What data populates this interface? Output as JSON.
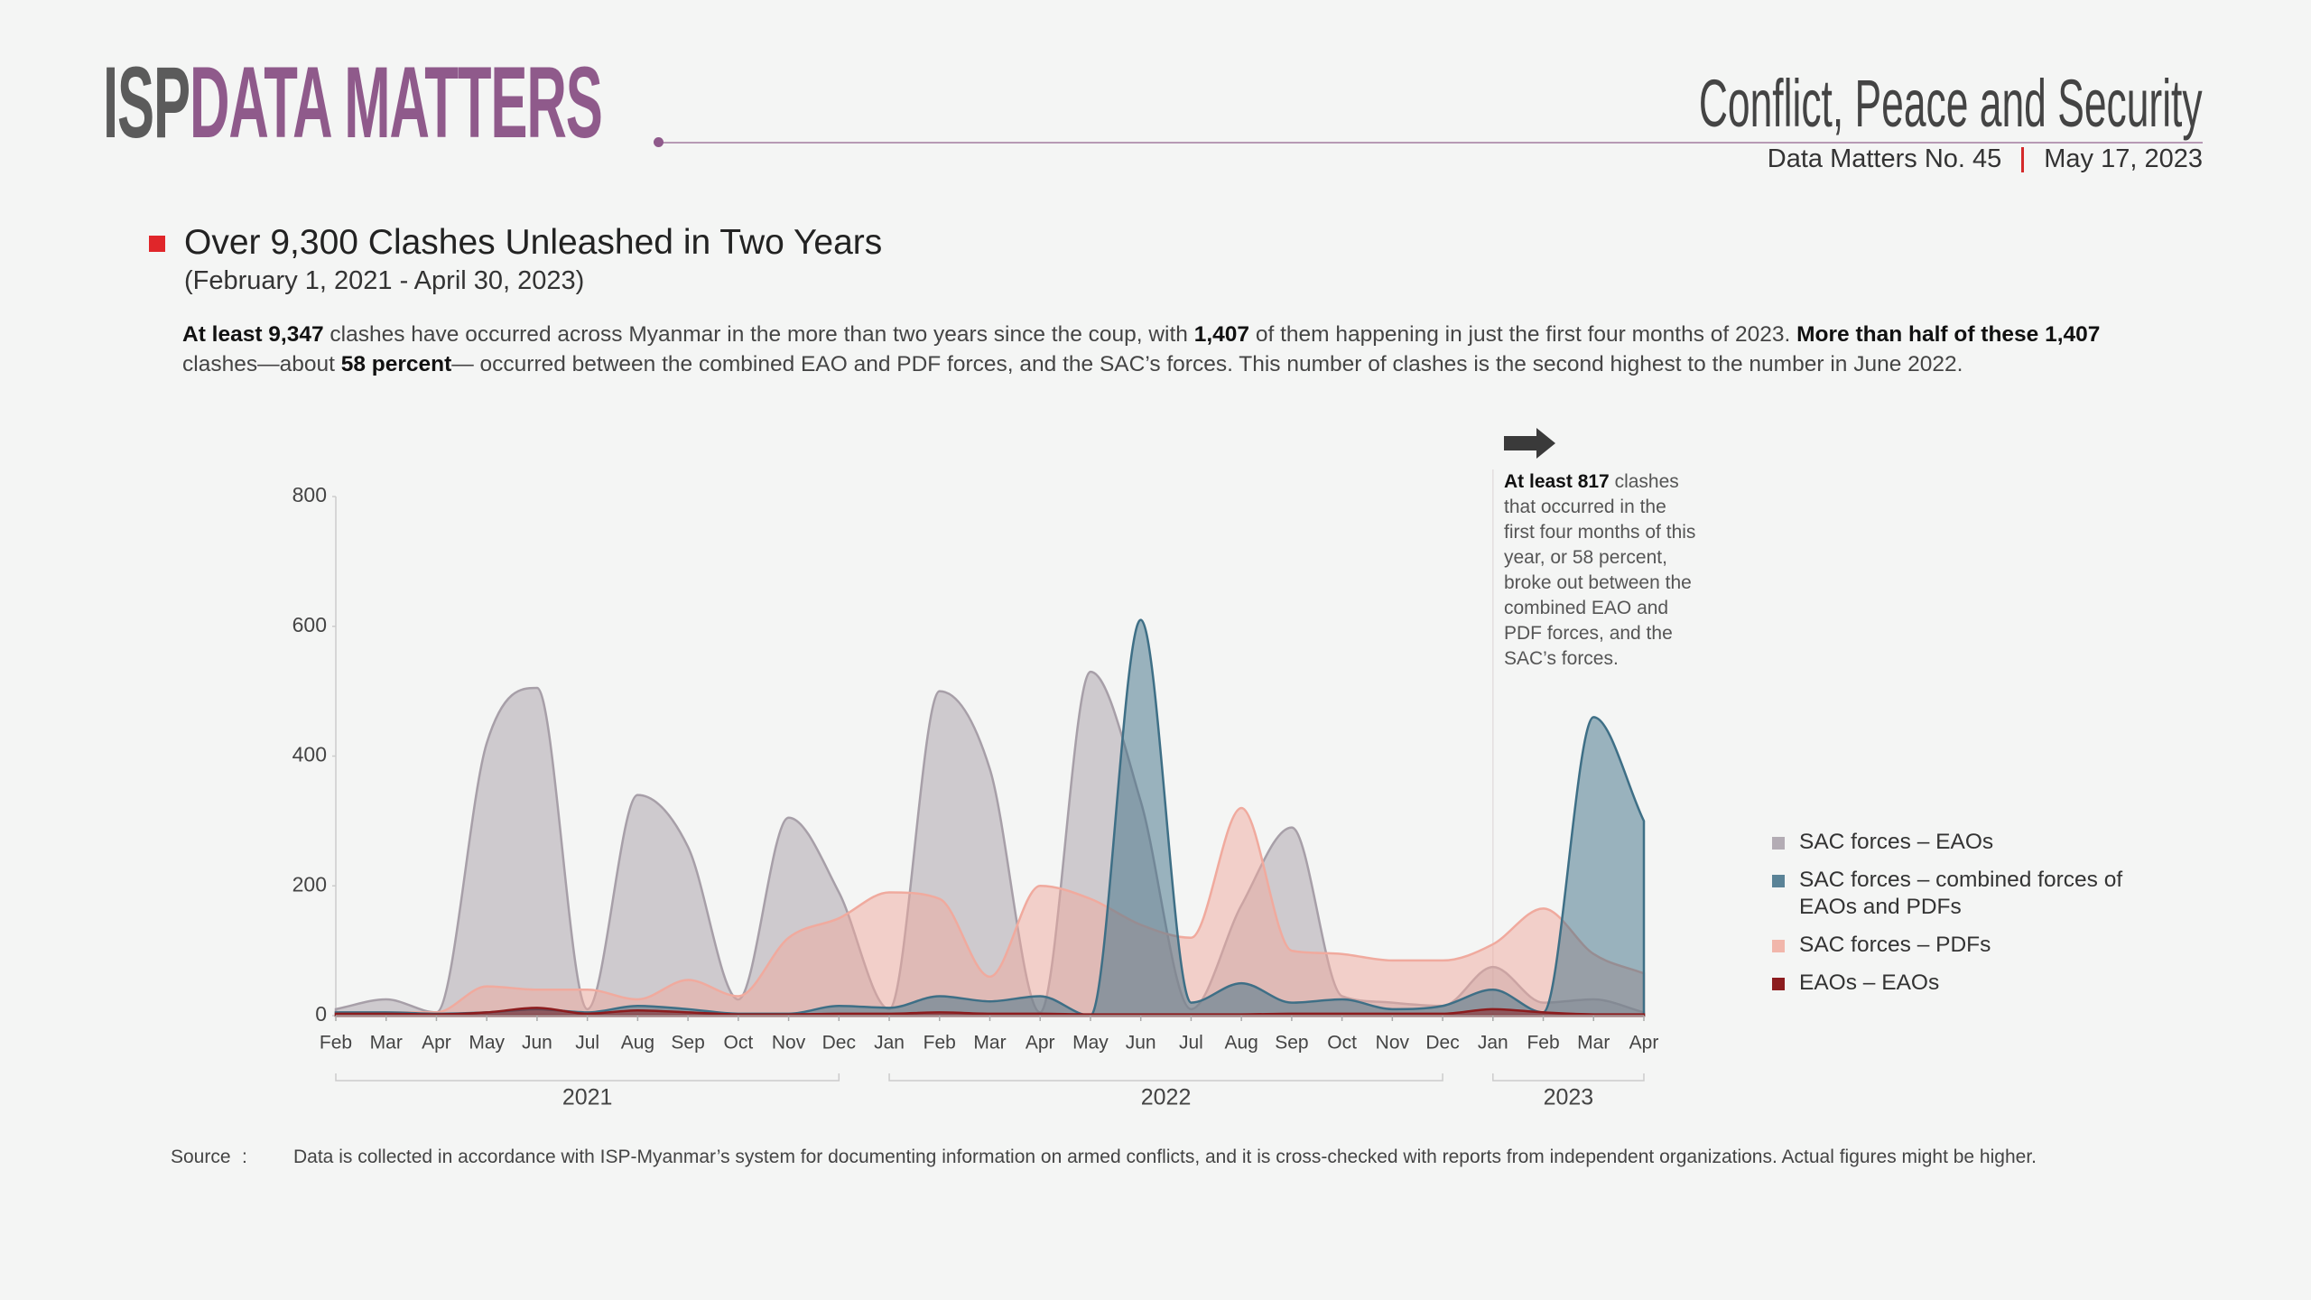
{
  "header": {
    "brand_isp": "ISP",
    "brand_data": "DATA MATTERS",
    "section": "Conflict, Peace and Security",
    "issue": "Data Matters No. 45",
    "date": "May 17, 2023"
  },
  "title": "Over 9,300 Clashes Unleashed in Two Years",
  "subtitle": "(February 1, 2021 - April 30, 2023)",
  "paragraph": [
    {
      "text": "At least 9,347",
      "bold": true
    },
    {
      "text": " clashes have occurred across Myanmar in the more than two years since the coup, with ",
      "bold": false
    },
    {
      "text": "1,407",
      "bold": true
    },
    {
      "text": " of them happening in just the first four months of 2023. ",
      "bold": false
    },
    {
      "text": "More than half of these 1,407",
      "bold": true
    },
    {
      "text": " clashes—about ",
      "bold": false
    },
    {
      "text": "58 percent",
      "bold": true
    },
    {
      "text": "— occurred between the combined EAO and PDF forces, and the SAC’s forces. This number of clashes is the second highest to the number in June 2022.",
      "bold": false
    }
  ],
  "chart_data": {
    "type": "area",
    "categories": [
      "Feb",
      "Mar",
      "Apr",
      "May",
      "Jun",
      "Jul",
      "Aug",
      "Sep",
      "Oct",
      "Nov",
      "Dec",
      "Jan",
      "Feb",
      "Mar",
      "Apr",
      "May",
      "Jun",
      "Jul",
      "Aug",
      "Sep",
      "Oct",
      "Nov",
      "Dec",
      "Jan",
      "Feb",
      "Mar",
      "Apr"
    ],
    "x_groups": [
      {
        "label": "2021",
        "count": 11
      },
      {
        "label": "2022",
        "count": 12
      },
      {
        "label": "2023",
        "count": 4
      }
    ],
    "series": [
      {
        "name": "SAC forces – EAOs",
        "color": "#a79fa8",
        "values": [
          10,
          25,
          5,
          420,
          505,
          10,
          340,
          260,
          25,
          305,
          190,
          10,
          500,
          380,
          5,
          530,
          330,
          10,
          170,
          290,
          30,
          20,
          15,
          75,
          20,
          25,
          5
        ]
      },
      {
        "name": "SAC forces – PDFs",
        "color": "#f0aa9e",
        "values": [
          5,
          5,
          5,
          45,
          40,
          40,
          25,
          55,
          30,
          120,
          150,
          190,
          180,
          60,
          200,
          180,
          140,
          120,
          320,
          100,
          95,
          85,
          85,
          110,
          165,
          95,
          65
        ]
      },
      {
        "name": "SAC forces – combined forces of EAOs and PDFs",
        "color": "#3e6f86",
        "values": [
          5,
          5,
          3,
          5,
          10,
          5,
          15,
          10,
          3,
          3,
          15,
          12,
          30,
          22,
          30,
          0,
          610,
          20,
          50,
          20,
          25,
          10,
          15,
          40,
          5,
          460,
          300
        ]
      },
      {
        "name": "EAOs – EAOs",
        "color": "#8c1c1e",
        "values": [
          3,
          3,
          2,
          5,
          12,
          3,
          8,
          5,
          2,
          2,
          3,
          3,
          5,
          3,
          3,
          2,
          2,
          2,
          2,
          3,
          3,
          3,
          3,
          10,
          5,
          2,
          2
        ]
      }
    ],
    "ylim": [
      0,
      800
    ],
    "yticks": [
      0,
      200,
      400,
      600,
      800
    ],
    "annotation": {
      "bold": "At least 817",
      "text": "clashes that occurred in the first four months of this year, or 58 percent, broke out between the combined EAO and PDF forces, and the SAC’s forces."
    }
  },
  "source": {
    "label": "Source",
    "separator": ":",
    "text": "Data is collected in accordance with ISP-Myanmar’s system for documenting information on armed conflicts, and it is cross-checked with reports from independent organizations. Actual figures might be higher."
  }
}
